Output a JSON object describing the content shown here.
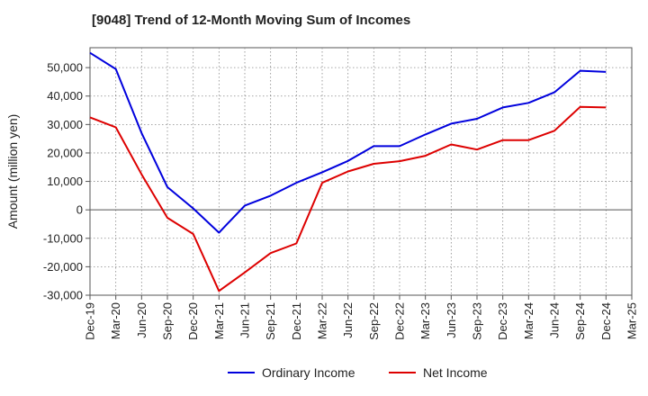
{
  "chart_data": {
    "type": "line",
    "title": "[9048]  Trend of 12-Month Moving Sum of Incomes",
    "xlabel": "",
    "ylabel": "Amount (million yen)",
    "ylim": [
      -30000,
      57000
    ],
    "yticks": [
      -30000,
      -20000,
      -10000,
      0,
      10000,
      20000,
      30000,
      40000,
      50000
    ],
    "ytick_labels": [
      "-30,000",
      "-20,000",
      "-10,000",
      "0",
      "10,000",
      "20,000",
      "30,000",
      "40,000",
      "50,000"
    ],
    "categories": [
      "Dec-19",
      "Mar-20",
      "Jun-20",
      "Sep-20",
      "Dec-20",
      "Mar-21",
      "Jun-21",
      "Sep-21",
      "Dec-21",
      "Mar-22",
      "Jun-22",
      "Sep-22",
      "Dec-22",
      "Mar-23",
      "Jun-23",
      "Sep-23",
      "Dec-23",
      "Mar-24",
      "Jun-24",
      "Sep-24",
      "Dec-24",
      "Mar-25"
    ],
    "grid": true,
    "legend_position": "bottom",
    "series": [
      {
        "name": "Ordinary Income",
        "color": "#0000dd",
        "values": [
          55200,
          49500,
          27000,
          8000,
          500,
          -8000,
          1500,
          5000,
          9500,
          13200,
          17200,
          22400,
          22400,
          26500,
          30300,
          32000,
          36000,
          37600,
          41300,
          48900,
          48500,
          null
        ]
      },
      {
        "name": "Net Income",
        "color": "#dd0000",
        "values": [
          32500,
          29000,
          12500,
          -2800,
          -8500,
          -28500,
          -22000,
          -15200,
          -11800,
          9500,
          13500,
          16200,
          17100,
          19000,
          23000,
          21200,
          24500,
          24500,
          27800,
          36200,
          36000,
          null
        ]
      }
    ]
  }
}
